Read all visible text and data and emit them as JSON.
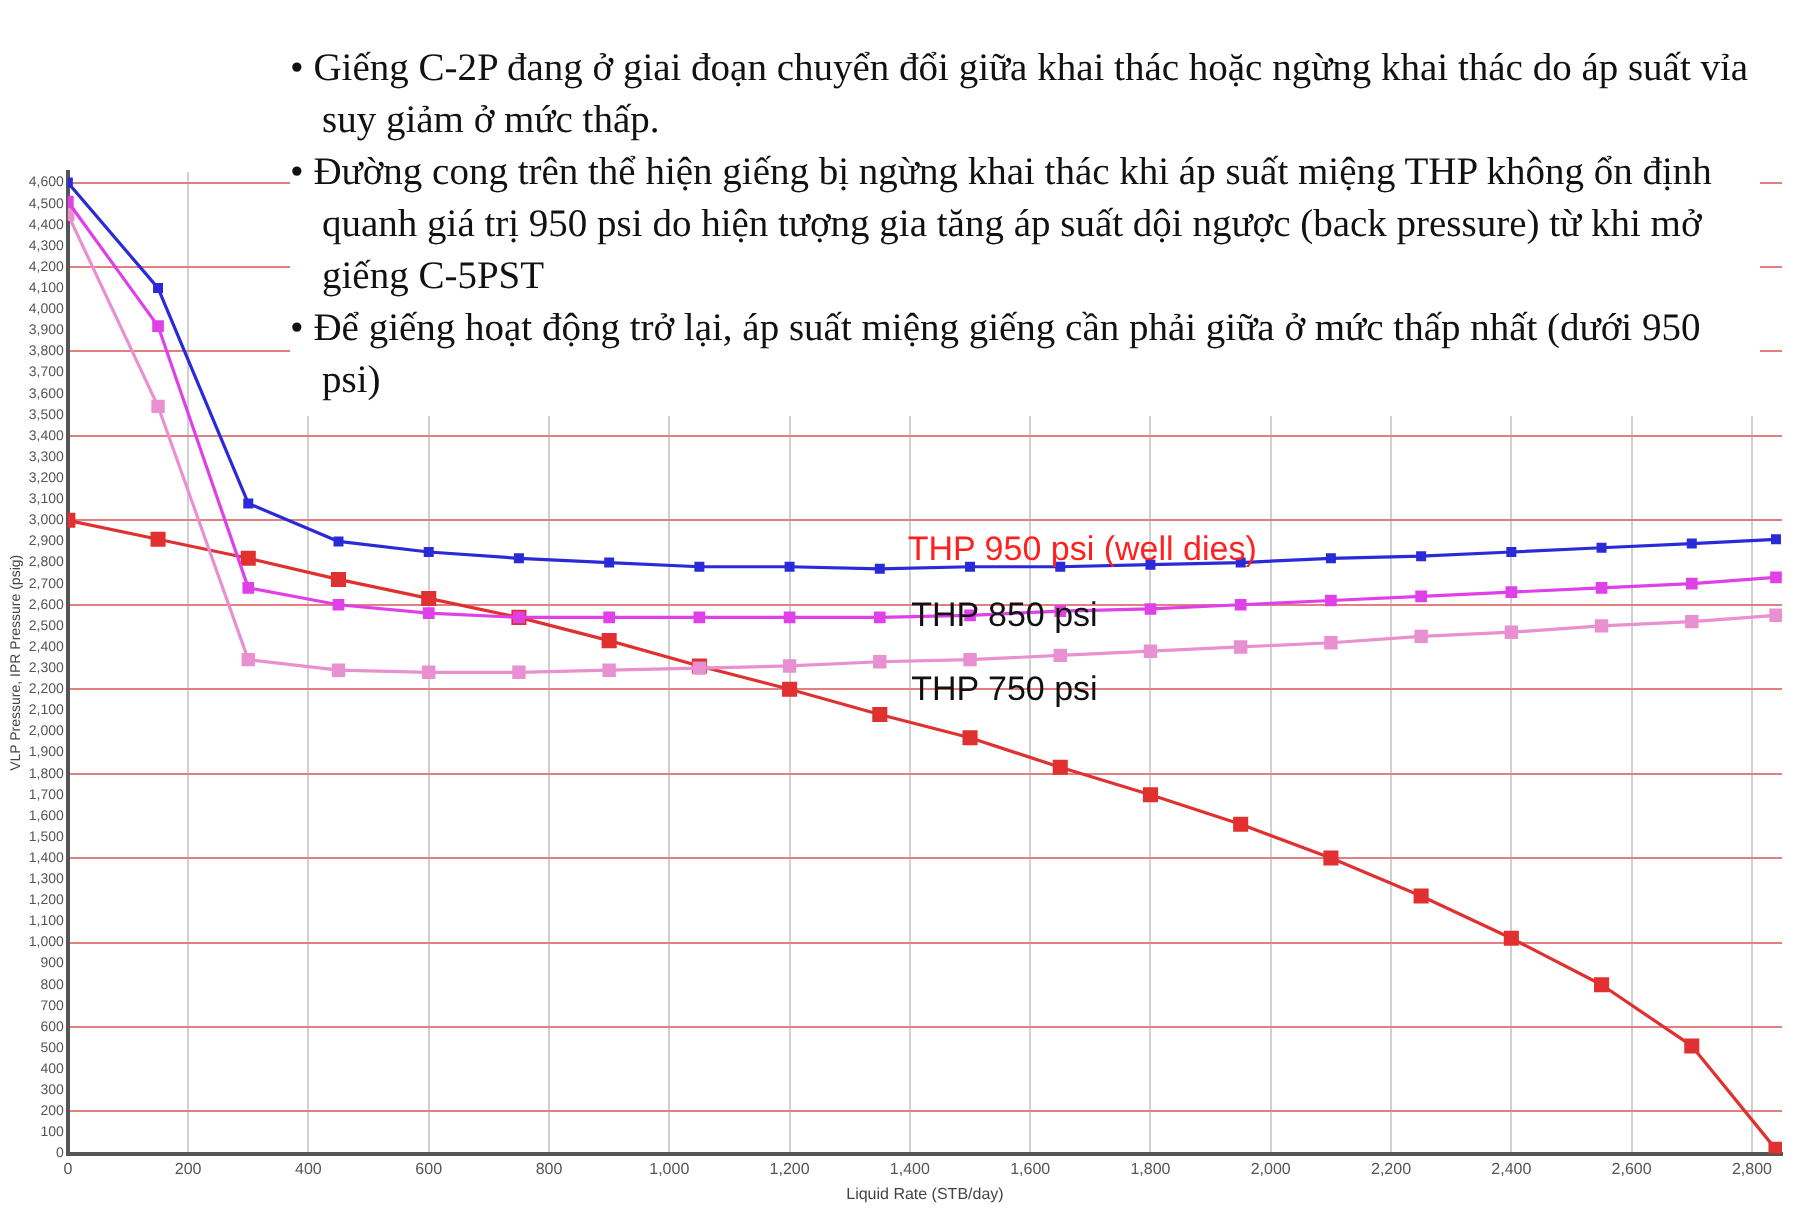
{
  "chart_data": {
    "type": "line",
    "xlabel": "Liquid Rate (STB/day)",
    "ylabel": "VLP Pressure, IPR Pressure (psig)",
    "annotations": [
      "• Giếng C-2P đang ở giai đoạn chuyển đổi giữa khai thác hoặc ngừng khai thác do áp suất vỉa suy giảm ở mức thấp.",
      "• Đường cong trên thể hiện giếng bị ngừng khai thác khi áp suất miệng THP không ổn định quanh giá trị 950 psi do hiện tượng gia tăng áp suất dội ngược (back pressure) từ khi mở giếng C-5PST",
      "• Để giếng hoạt động trở lại, áp suất miệng giếng cần phải giữa ở mức thấp nhất (dưới 950 psi)",
      "THP 950 psi (well dies)",
      "THP 850 psi",
      "THP 750 psi"
    ],
    "x": [
      0,
      150,
      300,
      450,
      600,
      750,
      900,
      1050,
      1200,
      1350,
      1500,
      1650,
      1800,
      1950,
      2100,
      2250,
      2400,
      2550,
      2700,
      2840
    ],
    "series": [
      {
        "color": "#2a2ad8",
        "values": [
          4600,
          4100,
          3080,
          2900,
          2850,
          2820,
          2800,
          2780,
          2780,
          2770,
          2780,
          2780,
          2790,
          2800,
          2820,
          2830,
          2850,
          2870,
          2890,
          2910
        ]
      },
      {
        "color": "#e040e8",
        "values": [
          4510,
          3920,
          2680,
          2600,
          2560,
          2540,
          2540,
          2540,
          2540,
          2540,
          2550,
          2570,
          2580,
          2600,
          2620,
          2640,
          2660,
          2680,
          2700,
          2730
        ]
      },
      {
        "color": "#e890d0",
        "values": [
          4450,
          3540,
          2340,
          2290,
          2280,
          2280,
          2290,
          2300,
          2310,
          2330,
          2340,
          2360,
          2380,
          2400,
          2420,
          2450,
          2470,
          2500,
          2520,
          2550
        ]
      },
      {
        "color": "#e03030",
        "values": [
          3000,
          2910,
          2820,
          2720,
          2630,
          2540,
          2430,
          2310,
          2200,
          2080,
          1970,
          1830,
          1700,
          1560,
          1400,
          1220,
          1020,
          800,
          510,
          20
        ]
      }
    ],
    "xlim": [
      0,
      2850
    ],
    "xticks": [
      0,
      200,
      400,
      600,
      800,
      {
        "value": 1000,
        "label": "1,000"
      },
      {
        "value": 1200,
        "label": "1,200"
      },
      {
        "value": 1400,
        "label": "1,400"
      },
      {
        "value": 1600,
        "label": "1,600"
      },
      {
        "value": 1800,
        "label": "1,800"
      },
      {
        "value": 2000,
        "label": "2,000"
      },
      {
        "value": 2200,
        "label": "2,200"
      },
      {
        "value": 2400,
        "label": "2,400"
      },
      {
        "value": 2600,
        "label": "2,600"
      },
      {
        "value": 2800,
        "label": "2,800"
      }
    ],
    "ylim": [
      0,
      4650
    ],
    "yticks": [
      0,
      100,
      200,
      300,
      400,
      500,
      600,
      700,
      800,
      900,
      {
        "value": 1000,
        "label": "1,000"
      },
      {
        "value": 1100,
        "label": "1,100"
      },
      {
        "value": 1200,
        "label": "1,200"
      },
      {
        "value": 1300,
        "label": "1,300"
      },
      {
        "value": 1400,
        "label": "1,400"
      },
      {
        "value": 1500,
        "label": "1,500"
      },
      {
        "value": 1600,
        "label": "1,600"
      },
      {
        "value": 1700,
        "label": "1,700"
      },
      {
        "value": 1800,
        "label": "1,800"
      },
      {
        "value": 1900,
        "label": "1,900"
      },
      {
        "value": 2000,
        "label": "2,000"
      },
      {
        "value": 2100,
        "label": "2,100"
      },
      {
        "value": 2200,
        "label": "2,200"
      },
      {
        "value": 2300,
        "label": "2,300"
      },
      {
        "value": 2400,
        "label": "2,400"
      },
      {
        "value": 2500,
        "label": "2,500"
      },
      {
        "value": 2600,
        "label": "2,600"
      },
      {
        "value": 2700,
        "label": "2,700"
      },
      {
        "value": 2800,
        "label": "2,800"
      },
      {
        "value": 2900,
        "label": "2,900"
      },
      {
        "value": 3000,
        "label": "3,000"
      },
      {
        "value": 3100,
        "label": "3,100"
      },
      {
        "value": 3200,
        "label": "3,200"
      },
      {
        "value": 3300,
        "label": "3,300"
      },
      {
        "value": 3400,
        "label": "3,400"
      },
      {
        "value": 3500,
        "label": "3,500"
      },
      {
        "value": 3600,
        "label": "3,600"
      },
      {
        "value": 3700,
        "label": "3,700"
      },
      {
        "value": 3800,
        "label": "3,800"
      },
      {
        "value": 3900,
        "label": "3,900"
      },
      {
        "value": 4000,
        "label": "4,000"
      },
      {
        "value": 4100,
        "label": "4,100"
      },
      {
        "value": 4200,
        "label": "4,200"
      },
      {
        "value": 4300,
        "label": "4,300"
      },
      {
        "value": 4400,
        "label": "4,400"
      },
      {
        "value": 4500,
        "label": "4,500"
      },
      {
        "value": 4600,
        "label": "4,600"
      }
    ],
    "grid": true,
    "marker": "square",
    "line_style": "solid"
  }
}
